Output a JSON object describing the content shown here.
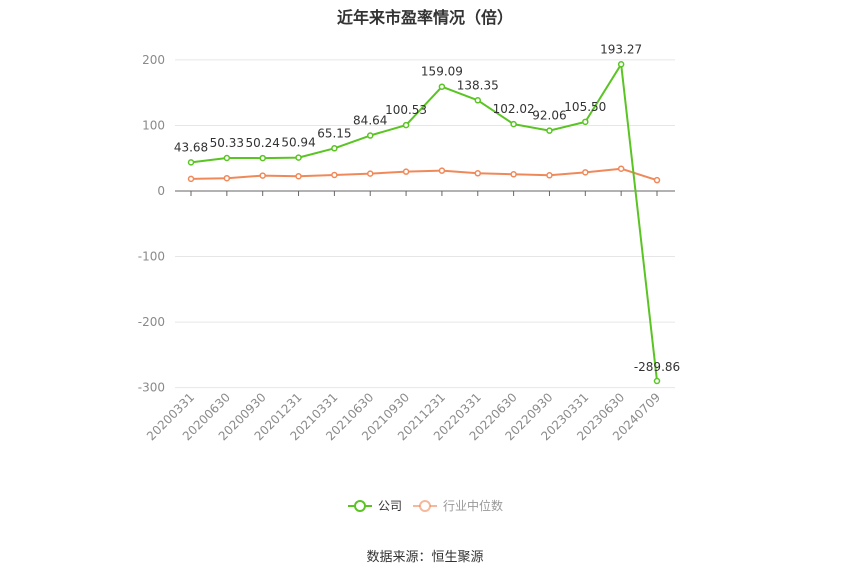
{
  "chart_data": {
    "type": "line",
    "title": "近年来市盈率情况（倍）",
    "categories": [
      "20200331",
      "20200630",
      "20200930",
      "20201231",
      "20210331",
      "20210630",
      "20210930",
      "20211231",
      "20220331",
      "20220630",
      "20220930",
      "20230331",
      "20230630",
      "20240709"
    ],
    "series": [
      {
        "name": "公司",
        "color": "#5ac423",
        "values": [
          43.68,
          50.33,
          50.24,
          50.94,
          65.15,
          84.64,
          100.53,
          159.09,
          138.35,
          102.02,
          92.06,
          105.5,
          193.27,
          -289.86
        ],
        "labels": [
          "43.68",
          "50.33",
          "50.24",
          "50.94",
          "65.15",
          "84.64",
          "100.53",
          "159.09",
          "138.35",
          "102.02",
          "92.06",
          "105.50",
          "193.27",
          "-289.86"
        ]
      },
      {
        "name": "行业中位数",
        "color": "#f0895a",
        "values": [
          18.5,
          19.5,
          23.5,
          22.5,
          24.5,
          26.5,
          29.5,
          31.0,
          27.0,
          25.5,
          24.0,
          28.5,
          34.0,
          16.5
        ]
      }
    ],
    "yticks": [
      200,
      100,
      0,
      -100,
      -200,
      -300
    ],
    "ylim": [
      -300,
      200
    ],
    "grid": true,
    "legend": "bottom"
  },
  "footer": "数据来源：恒生聚源"
}
